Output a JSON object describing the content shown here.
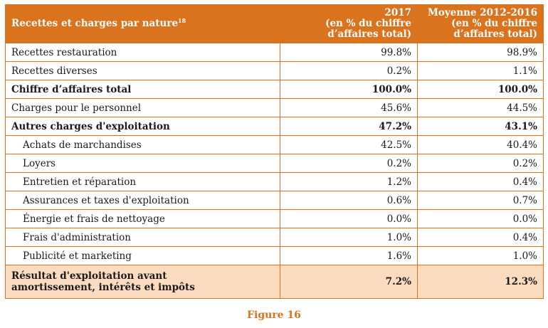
{
  "table": {
    "header": {
      "label": "Recettes et charges par nature",
      "footnote": "18",
      "col2": [
        "2017",
        "(en % du chiffre",
        "d’affaires total)"
      ],
      "col3": [
        "Moyenne 2012-2016",
        "(en % du chiffre",
        "d’affaires total)"
      ]
    },
    "rows": [
      {
        "label": "Recettes restauration",
        "v2017": "99.8%",
        "vavg": "98.9%"
      },
      {
        "label": "Recettes diverses",
        "v2017": "0.2%",
        "vavg": "1.1%"
      },
      {
        "label": "Chiffre d’affaires total",
        "v2017": "100.0%",
        "vavg": "100.0%"
      },
      {
        "label": "Charges pour le personnel",
        "v2017": "45.6%",
        "vavg": "44.5%"
      },
      {
        "label": "Autres charges d'exploitation",
        "v2017": "47.2%",
        "vavg": "43.1%"
      },
      {
        "label": "Achats de marchandises",
        "v2017": "42.5%",
        "vavg": "40.4%"
      },
      {
        "label": "Loyers",
        "v2017": "0.2%",
        "vavg": "0.2%"
      },
      {
        "label": "Entretien et réparation",
        "v2017": "1.2%",
        "vavg": "0.4%"
      },
      {
        "label": "Assurances et taxes d'exploitation",
        "v2017": "0.6%",
        "vavg": "0.7%"
      },
      {
        "label": "Énergie et frais de nettoyage",
        "v2017": "0.0%",
        "vavg": "0.0%"
      },
      {
        "label": "Frais d'administration",
        "v2017": "1.0%",
        "vavg": "0.4%"
      },
      {
        "label": "Publicité et marketing",
        "v2017": "1.6%",
        "vavg": "1.0%"
      }
    ],
    "result": {
      "label_line1": "Résultat d'exploitation avant",
      "label_line2": "amortissement, intérêts et impôts",
      "v2017": "7.2%",
      "vavg": "12.3%"
    }
  },
  "caption": "Figure 16",
  "colors": {
    "accent": "#d9731e",
    "result_bg": "#fbdcc0"
  }
}
